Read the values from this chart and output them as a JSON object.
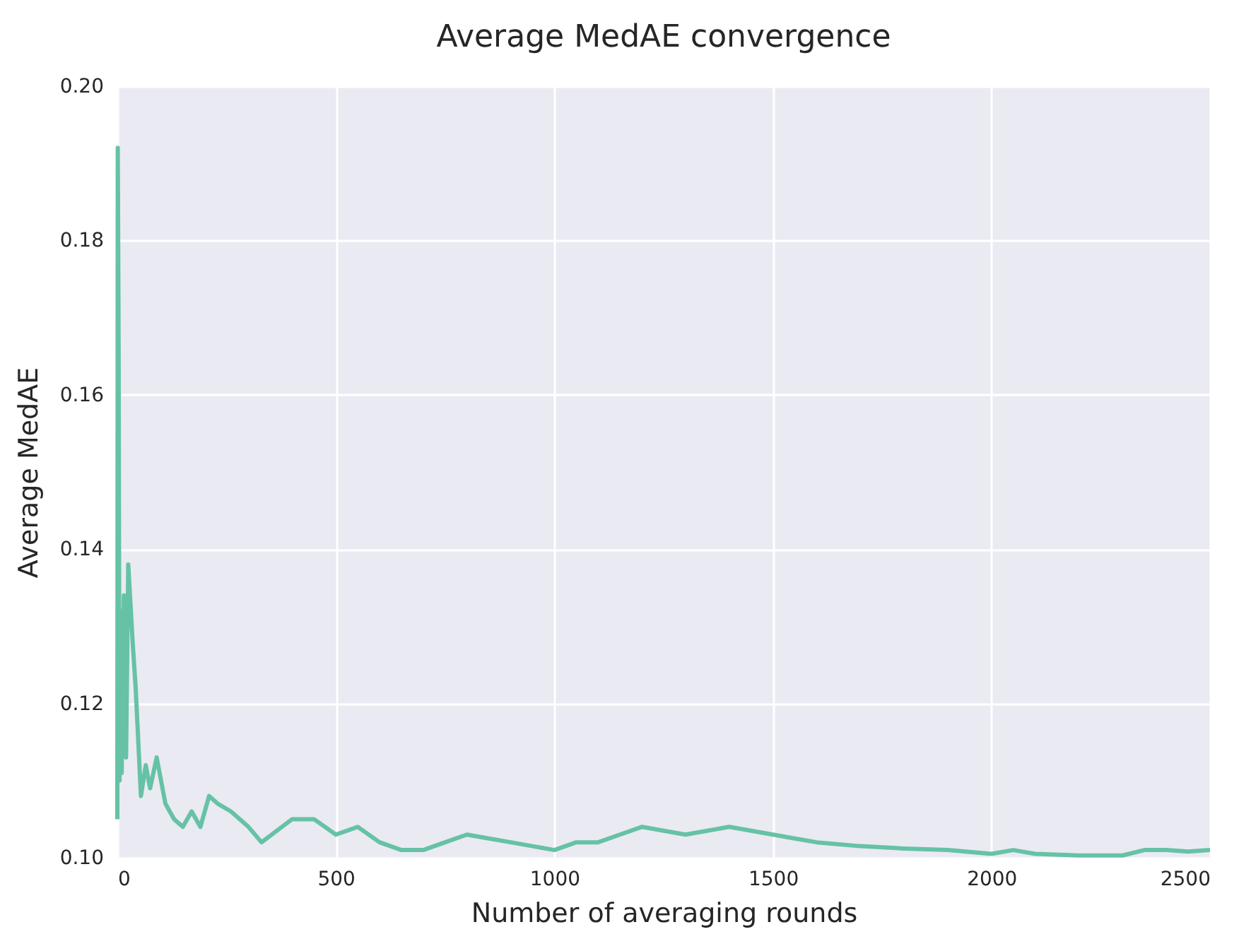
{
  "chart_data": {
    "type": "line",
    "title": "Average MedAE convergence",
    "xlabel": "Number of averaging rounds",
    "ylabel": "Average MedAE",
    "x": [
      0,
      1,
      3,
      5,
      8,
      10,
      15,
      20,
      25,
      35,
      42,
      54,
      65,
      75,
      90,
      110,
      130,
      150,
      170,
      190,
      210,
      230,
      260,
      300,
      330,
      400,
      450,
      500,
      550,
      600,
      650,
      700,
      750,
      800,
      850,
      900,
      950,
      1000,
      1050,
      1100,
      1150,
      1200,
      1250,
      1300,
      1350,
      1400,
      1450,
      1500,
      1550,
      1600,
      1700,
      1800,
      1900,
      2000,
      2050,
      2100,
      2200,
      2300,
      2350,
      2400,
      2450,
      2500
    ],
    "series": [
      {
        "color": "#66c2a5",
        "values": [
          0.105,
          0.192,
          0.166,
          0.11,
          0.132,
          0.111,
          0.134,
          0.113,
          0.138,
          0.128,
          0.122,
          0.108,
          0.112,
          0.109,
          0.113,
          0.107,
          0.105,
          0.104,
          0.106,
          0.104,
          0.108,
          0.107,
          0.106,
          0.104,
          0.102,
          0.105,
          0.105,
          0.103,
          0.104,
          0.102,
          0.101,
          0.101,
          0.102,
          0.103,
          0.1025,
          0.102,
          0.1015,
          0.101,
          0.102,
          0.102,
          0.103,
          0.104,
          0.1035,
          0.103,
          0.1035,
          0.104,
          0.1035,
          0.103,
          0.1025,
          0.102,
          0.1015,
          0.1012,
          0.101,
          0.1005,
          0.101,
          0.1005,
          0.1003,
          0.1003,
          0.101,
          0.101,
          0.1008,
          0.101
        ]
      }
    ],
    "xlim": [
      0,
      2500
    ],
    "ylim": [
      0.1,
      0.2
    ],
    "xticks": [
      0,
      500,
      1000,
      1500,
      2000,
      2500
    ],
    "yticks": [
      {
        "value": 0.1,
        "label": "0.10"
      },
      0.12,
      0.14,
      0.16,
      0.18,
      {
        "value": 0.2,
        "label": "0.20"
      }
    ],
    "grid": true,
    "legend": false
  }
}
